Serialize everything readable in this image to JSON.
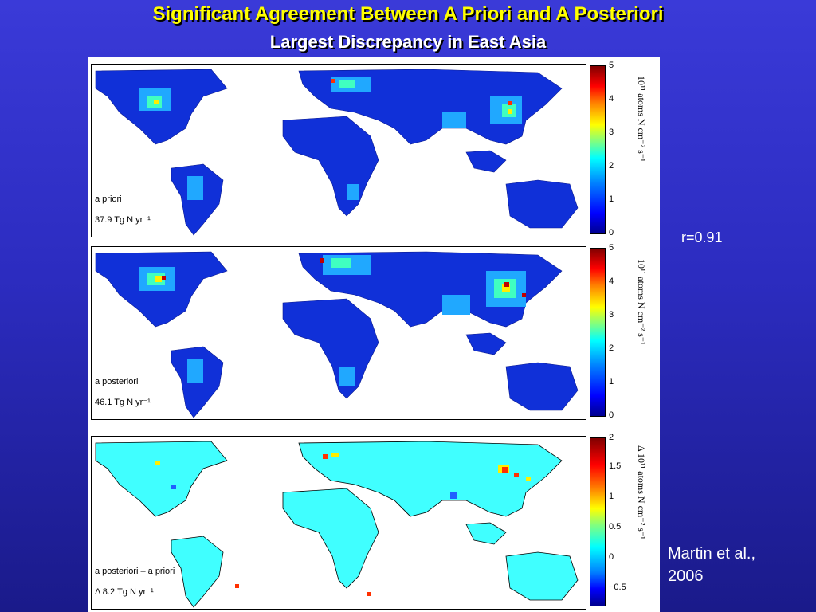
{
  "title": "Significant Agreement Between A Priori and A Posteriori",
  "subtitle": "Largest Discrepancy in East Asia",
  "panels": [
    {
      "label_line1": "a priori",
      "label_line2": "37.9 Tg N yr⁻¹",
      "unit": "10¹¹ atoms N cm⁻² s⁻¹",
      "ticks": [
        "5",
        "4",
        "3",
        "2",
        "1",
        "0"
      ],
      "colorscale": "jet"
    },
    {
      "label_line1": "a posteriori",
      "label_line2": "46.1 Tg N yr⁻¹",
      "unit": "10¹¹ atoms N cm⁻² s⁻¹",
      "ticks": [
        "5",
        "4",
        "3",
        "2",
        "1",
        "0"
      ],
      "colorscale": "jet"
    },
    {
      "label_line1": "a posteriori – a priori",
      "label_line2": "Δ 8.2 Tg N yr⁻¹",
      "unit": "Δ 10¹¹ atoms N cm⁻² s⁻¹",
      "ticks": [
        "2",
        "1.5",
        "1",
        "0.5",
        "0",
        "−0.5"
      ],
      "colorscale": "jet"
    }
  ],
  "correlation": "r=0.91",
  "citation_line1": "Martin et al.,",
  "citation_line2": "2006"
}
